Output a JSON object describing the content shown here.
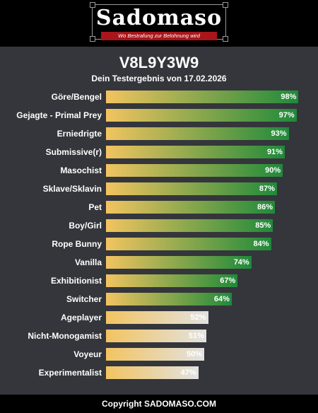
{
  "header": {
    "logo_title": "Sadomaso",
    "logo_tagline": "Wo Bestrafung zur Belohnung wird"
  },
  "colors": {
    "bar_start": "#f2c460",
    "bar_high_end": "#1f8a3a",
    "bar_low_end": "#e2e2e2",
    "panel_bg": "#34363b"
  },
  "chart_data": {
    "type": "bar",
    "orientation": "horizontal",
    "title": "V8L9Y3W9",
    "subtitle": "Dein Testergebnis von 17.02.2026",
    "xlim": [
      0,
      100
    ],
    "categories": [
      "Göre/Bengel",
      "Gejagte - Primal Prey",
      "Erniedrigte",
      "Submissive(r)",
      "Masochist",
      "Sklave/Sklavin",
      "Pet",
      "Boy/Girl",
      "Rope Bunny",
      "Vanilla",
      "Exhibitionist",
      "Switcher",
      "Ageplayer",
      "Nicht-Monogamist",
      "Voyeur",
      "Experimentalist"
    ],
    "values": [
      98,
      97,
      93,
      91,
      90,
      87,
      86,
      85,
      84,
      74,
      67,
      64,
      52,
      51,
      50,
      47
    ],
    "value_labels": [
      "98%",
      "97%",
      "93%",
      "91%",
      "90%",
      "87%",
      "86%",
      "85%",
      "84%",
      "74%",
      "67%",
      "64%",
      "52%",
      "51%",
      "50%",
      "47%"
    ]
  },
  "footer": {
    "copyright": "Copyright SADOMASO.COM"
  }
}
